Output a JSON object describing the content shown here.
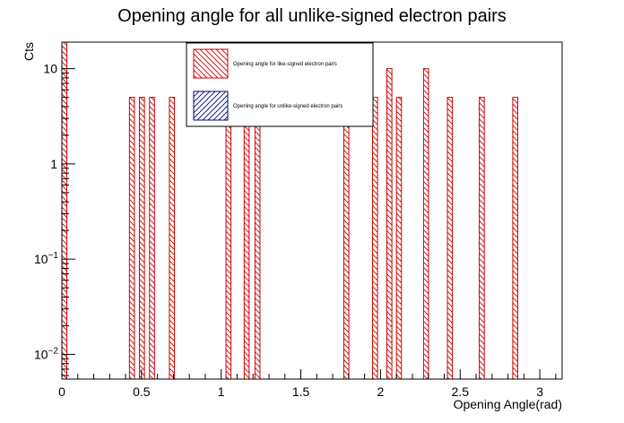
{
  "chart_data": {
    "type": "bar",
    "title": "Opening angle for all unlike-signed electron pairs",
    "xlabel": "Opening Angle(rad)",
    "ylabel": "Cts",
    "xlim": [
      0,
      3.14
    ],
    "ylim": [
      0.0055,
      19
    ],
    "log_y": true,
    "grid": false,
    "legend_position": "top-center",
    "bin_width": 0.0314,
    "x_ticks": [
      {
        "value": 0,
        "label": "0"
      },
      {
        "value": 0.5,
        "label": "0.5"
      },
      {
        "value": 1,
        "label": "1"
      },
      {
        "value": 1.5,
        "label": "1.5"
      },
      {
        "value": 2,
        "label": "2"
      },
      {
        "value": 2.5,
        "label": "2.5"
      },
      {
        "value": 3,
        "label": "3"
      }
    ],
    "y_ticks": [
      {
        "value": 0.01,
        "base": "10",
        "exp": "−2"
      },
      {
        "value": 0.1,
        "base": "10",
        "exp": "−1"
      },
      {
        "value": 1,
        "base": "1",
        "exp": ""
      },
      {
        "value": 10,
        "base": "10",
        "exp": ""
      }
    ],
    "series": [
      {
        "name": "Opening angle for like-signed electron pairs",
        "color": "#cc0000",
        "hatch": "back-diagonal",
        "bins": [
          {
            "x": 0.0,
            "y": 20
          },
          {
            "x": 0.424,
            "y": 5
          },
          {
            "x": 0.487,
            "y": 5
          },
          {
            "x": 0.55,
            "y": 5
          },
          {
            "x": 0.675,
            "y": 5
          },
          {
            "x": 1.03,
            "y": 5
          },
          {
            "x": 1.144,
            "y": 5
          },
          {
            "x": 1.212,
            "y": 5
          },
          {
            "x": 1.77,
            "y": 5
          },
          {
            "x": 1.95,
            "y": 5
          },
          {
            "x": 2.04,
            "y": 10
          },
          {
            "x": 2.1,
            "y": 5
          },
          {
            "x": 2.27,
            "y": 10
          },
          {
            "x": 2.42,
            "y": 5
          },
          {
            "x": 2.62,
            "y": 5
          },
          {
            "x": 2.83,
            "y": 5
          }
        ]
      },
      {
        "name": "Opening angle for unlike-signed electron pairs",
        "color": "#000080",
        "hatch": "forward-diagonal",
        "bins": []
      }
    ]
  },
  "colors": {
    "frame": "#000000",
    "like_signed": "#cc0000",
    "unlike_signed": "#000080"
  }
}
